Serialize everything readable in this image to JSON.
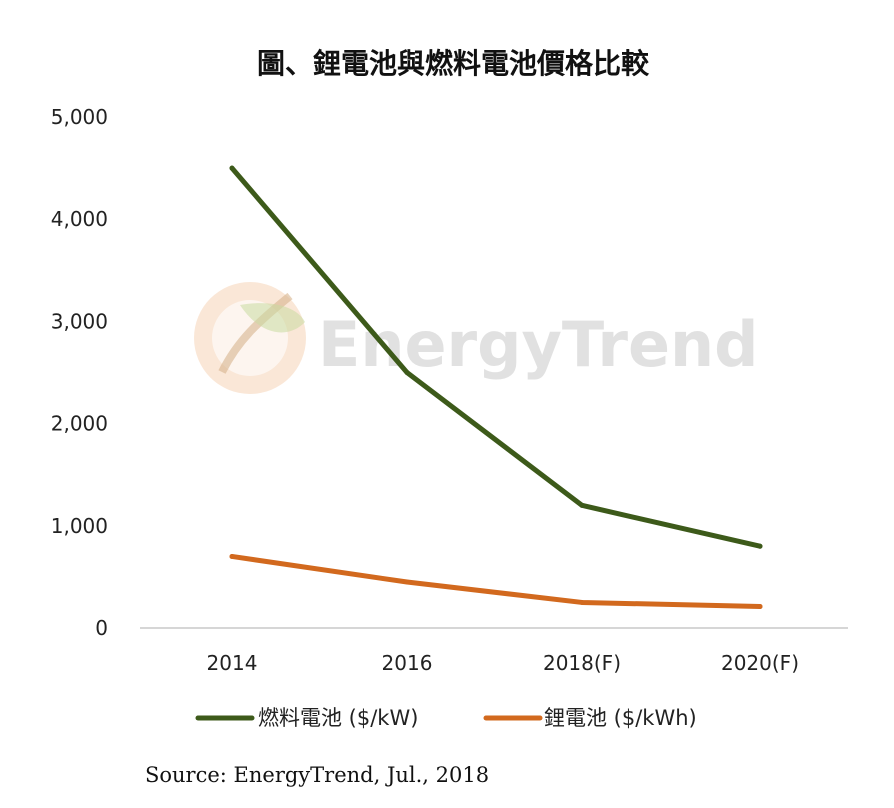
{
  "chart_data": {
    "type": "line",
    "title": "圖、鋰電池與燃料電池價格比較",
    "categories": [
      "2014",
      "2016",
      "2018(F)",
      "2020(F)"
    ],
    "series": [
      {
        "name": "燃料電池 ($/kW)",
        "values": [
          4500,
          2500,
          1200,
          800
        ],
        "color": "#3d5a1a"
      },
      {
        "name": "鋰電池 ($/kWh)",
        "values": [
          700,
          450,
          250,
          210
        ],
        "color": "#d2691e"
      }
    ],
    "y_ticks": [
      "0",
      "1,000",
      "2,000",
      "3,000",
      "4,000",
      "5,000"
    ],
    "ylim": [
      0,
      5000
    ],
    "grid": false,
    "legend_position": "bottom",
    "source": "Source: EnergyTrend, Jul., 2018",
    "watermark": "EnergyTrend",
    "watermark_icon": "leaf-logo-icon"
  }
}
